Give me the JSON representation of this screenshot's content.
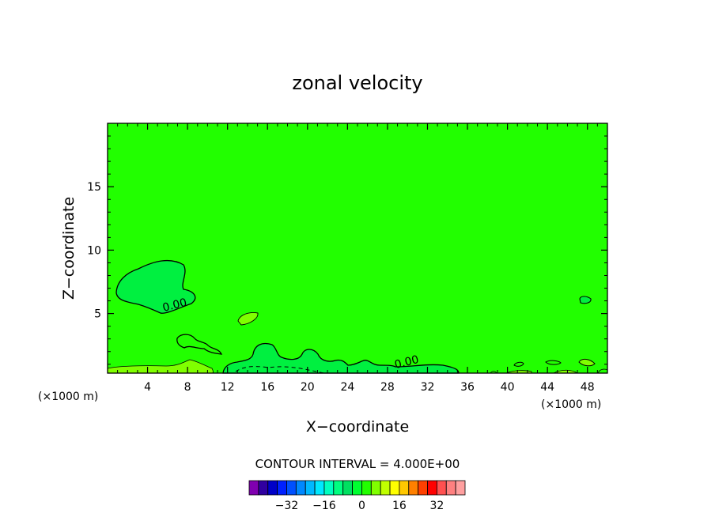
{
  "chart_data": {
    "type": "heatmap",
    "title": "zonal velocity",
    "xlabel": "X−coordinate",
    "ylabel": "Z−coordinate",
    "x_unit_left": "(×1000 m)",
    "x_unit_right": "(×1000 m)",
    "xlim": [
      0,
      50
    ],
    "ylim": [
      0.3,
      20
    ],
    "x_ticks": [
      {
        "value": 4,
        "label": "4"
      },
      {
        "value": 8,
        "label": "8"
      },
      {
        "value": 12,
        "label": "12"
      },
      {
        "value": 16,
        "label": "16"
      },
      {
        "value": 20,
        "label": "20"
      },
      {
        "value": 24,
        "label": "24"
      },
      {
        "value": 28,
        "label": "28"
      },
      {
        "value": 32,
        "label": "32"
      },
      {
        "value": 36,
        "label": "36"
      },
      {
        "value": 40,
        "label": "40"
      },
      {
        "value": 44,
        "label": "44"
      },
      {
        "value": 48,
        "label": "48"
      }
    ],
    "y_ticks": [
      {
        "value": 5,
        "label": "5"
      },
      {
        "value": 10,
        "label": "10"
      },
      {
        "value": 15,
        "label": "15"
      }
    ],
    "background_level_color": "#22ff00",
    "contour_labels": [
      {
        "text": "0.00",
        "x": 6.8,
        "y": 5.4
      },
      {
        "text": "0.00",
        "x": 30.0,
        "y": 0.9
      }
    ],
    "contour_interval_text": "CONTOUR INTERVAL = 4.000E+00",
    "colorbar": {
      "colors": [
        "#8000b0",
        "#3000a0",
        "#0000c8",
        "#0020ff",
        "#0050ff",
        "#0088ff",
        "#00b8ff",
        "#00e8ff",
        "#00ffc0",
        "#00ff80",
        "#00e060",
        "#00ff30",
        "#22ff00",
        "#80ff00",
        "#c0ff00",
        "#ffff00",
        "#ffc800",
        "#ff8000",
        "#ff4000",
        "#ff0000",
        "#ff5050",
        "#ff8080",
        "#ffa0a0"
      ],
      "tick_labels": [
        {
          "value": -32,
          "label": "−32"
        },
        {
          "value": -16,
          "label": "−16"
        },
        {
          "value": 0,
          "label": "0"
        },
        {
          "value": 16,
          "label": "16"
        },
        {
          "value": 32,
          "label": "32"
        }
      ]
    }
  }
}
